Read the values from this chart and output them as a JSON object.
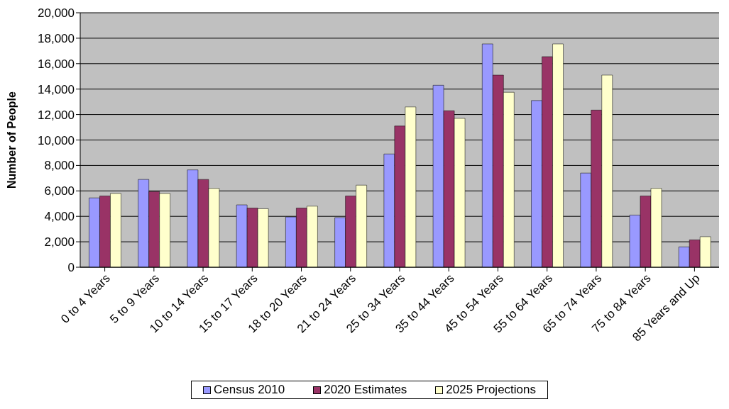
{
  "chart_data": {
    "type": "bar",
    "ylabel": "Number of People",
    "categories": [
      "0 to 4 Years",
      "5 to 9 Years",
      "10 to 14 Years",
      "15 to 17 Years",
      "18 to 20 Years",
      "21 to 24 Years",
      "25 to 34 Years",
      "35 to 44 Years",
      "45 to 54 Years",
      "55 to 64 Years",
      "65 to 74 Years",
      "75 to 84 Years",
      "85 Years and Up"
    ],
    "series": [
      {
        "name": "Census 2010",
        "color": "#9999ff",
        "values": [
          5450,
          6900,
          7650,
          4900,
          3950,
          3900,
          8900,
          14300,
          17550,
          13100,
          7400,
          4100,
          1600
        ]
      },
      {
        "name": "2020 Estimates",
        "color": "#993366",
        "values": [
          5600,
          5950,
          6900,
          4650,
          4650,
          5600,
          11100,
          12300,
          15100,
          16550,
          12350,
          5600,
          2150
        ]
      },
      {
        "name": "2025 Projections",
        "color": "#ffffcc",
        "values": [
          5800,
          5800,
          6200,
          4600,
          4800,
          6450,
          12600,
          11700,
          13750,
          17550,
          15100,
          6200,
          2400
        ]
      }
    ],
    "ylim": [
      0,
      20000
    ],
    "yticks": [
      0,
      {
        "value": 2000,
        "label": "2,000"
      },
      {
        "value": 4000,
        "label": "4,000"
      },
      {
        "value": 6000,
        "label": "6,000"
      },
      {
        "value": 8000,
        "label": "8,000"
      },
      {
        "value": 10000,
        "label": "10,000"
      },
      {
        "value": 12000,
        "label": "12,000"
      },
      {
        "value": 14000,
        "label": "14,000"
      },
      {
        "value": 16000,
        "label": "16,000"
      },
      {
        "value": 18000,
        "label": "18,000"
      },
      {
        "value": 20000,
        "label": "20,000"
      }
    ],
    "grid": "y",
    "legend": "bottom"
  }
}
